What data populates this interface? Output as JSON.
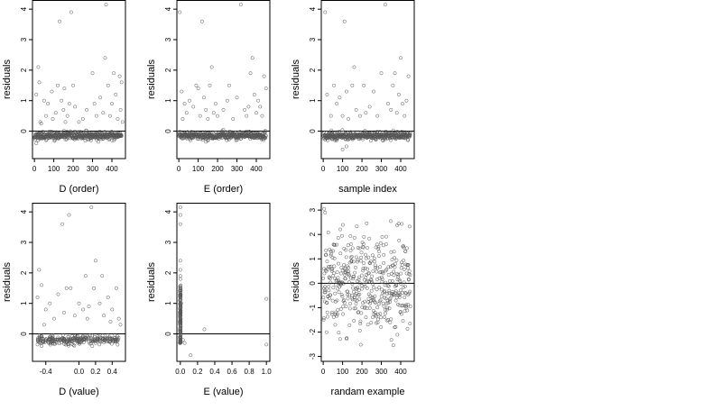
{
  "chart_data": [
    {
      "type": "scatter",
      "xlabel": "D (order)",
      "ylabel": "residuals",
      "xlim": [
        -10,
        470
      ],
      "ylim": [
        -0.9,
        4.3
      ],
      "xticks": [
        0,
        100,
        200,
        300,
        400
      ],
      "yticks": [
        0,
        1,
        2,
        3,
        4
      ],
      "reference_line_y": 0,
      "marker": "open-circle",
      "generated_cloud": {
        "mode": "baseline",
        "n": 450,
        "x_max": 450,
        "seed": 11,
        "base": -0.15,
        "spread": 0.06
      },
      "points": [
        [
          10,
          1.2
        ],
        [
          20,
          2.1
        ],
        [
          25,
          1.6
        ],
        [
          30,
          0.3
        ],
        [
          35,
          0.25
        ],
        [
          50,
          1.0
        ],
        [
          60,
          0.5
        ],
        [
          70,
          0.9
        ],
        [
          90,
          1.3
        ],
        [
          95,
          0.4
        ],
        [
          110,
          0.6
        ],
        [
          120,
          1.5
        ],
        [
          130,
          3.6
        ],
        [
          140,
          1.0
        ],
        [
          150,
          0.7
        ],
        [
          155,
          1.4
        ],
        [
          160,
          0.3
        ],
        [
          170,
          0.5
        ],
        [
          180,
          0.9
        ],
        [
          190,
          3.9
        ],
        [
          200,
          1.5
        ],
        [
          210,
          0.8
        ],
        [
          230,
          0.3
        ],
        [
          250,
          0.4
        ],
        [
          270,
          0.7
        ],
        [
          300,
          1.9
        ],
        [
          310,
          0.9
        ],
        [
          320,
          0.5
        ],
        [
          340,
          1.1
        ],
        [
          355,
          0.6
        ],
        [
          365,
          2.4
        ],
        [
          370,
          4.15
        ],
        [
          380,
          1.5
        ],
        [
          390,
          0.5
        ],
        [
          400,
          0.9
        ],
        [
          410,
          1.9
        ],
        [
          420,
          1.2
        ],
        [
          430,
          0.4
        ],
        [
          440,
          1.8
        ],
        [
          445,
          0.7
        ],
        [
          450,
          1.6
        ],
        [
          455,
          0.3
        ],
        [
          20,
          -0.3
        ],
        [
          10,
          -0.4
        ],
        [
          60,
          -0.3
        ],
        [
          330,
          -0.35
        ],
        [
          400,
          -0.3
        ]
      ]
    },
    {
      "type": "scatter",
      "xlabel": "E (order)",
      "ylabel": "residuals",
      "xlim": [
        -10,
        470
      ],
      "ylim": [
        -0.9,
        4.3
      ],
      "xticks": [
        0,
        100,
        200,
        300,
        400
      ],
      "yticks": [
        0,
        1,
        2,
        3,
        4
      ],
      "reference_line_y": 0,
      "marker": "open-circle",
      "generated_cloud": {
        "mode": "baseline",
        "n": 450,
        "x_max": 450,
        "seed": 23,
        "base": -0.15,
        "spread": 0.06
      },
      "points": [
        [
          5,
          3.9
        ],
        [
          15,
          1.3
        ],
        [
          20,
          0.4
        ],
        [
          30,
          0.9
        ],
        [
          40,
          0.6
        ],
        [
          55,
          1.0
        ],
        [
          75,
          0.8
        ],
        [
          90,
          1.5
        ],
        [
          100,
          1.4
        ],
        [
          110,
          0.5
        ],
        [
          120,
          3.6
        ],
        [
          130,
          1.1
        ],
        [
          140,
          0.7
        ],
        [
          150,
          0.4
        ],
        [
          160,
          1.5
        ],
        [
          170,
          2.1
        ],
        [
          180,
          0.6
        ],
        [
          190,
          0.9
        ],
        [
          200,
          0.5
        ],
        [
          230,
          0.7
        ],
        [
          250,
          1.0
        ],
        [
          260,
          1.5
        ],
        [
          280,
          0.4
        ],
        [
          300,
          1.1
        ],
        [
          320,
          4.15
        ],
        [
          340,
          0.7
        ],
        [
          350,
          0.5
        ],
        [
          360,
          0.8
        ],
        [
          370,
          1.9
        ],
        [
          380,
          2.4
        ],
        [
          390,
          1.2
        ],
        [
          400,
          0.6
        ],
        [
          410,
          1.0
        ],
        [
          420,
          0.8
        ],
        [
          430,
          0.5
        ],
        [
          440,
          1.8
        ],
        [
          450,
          1.4
        ],
        [
          140,
          -0.35
        ],
        [
          60,
          -0.3
        ]
      ]
    },
    {
      "type": "scatter",
      "xlabel": "sample index",
      "ylabel": "residuals",
      "xlim": [
        -10,
        470
      ],
      "ylim": [
        -0.9,
        4.3
      ],
      "xticks": [
        0,
        100,
        200,
        300,
        400
      ],
      "yticks": [
        0,
        1,
        2,
        3,
        4
      ],
      "reference_line_y": 0,
      "marker": "open-circle",
      "generated_cloud": {
        "mode": "baseline",
        "n": 450,
        "x_max": 450,
        "seed": 37,
        "base": -0.15,
        "spread": 0.06
      },
      "points": [
        [
          10,
          3.9
        ],
        [
          20,
          1.2
        ],
        [
          40,
          0.5
        ],
        [
          55,
          1.5
        ],
        [
          70,
          0.9
        ],
        [
          85,
          1.1
        ],
        [
          100,
          0.5
        ],
        [
          110,
          3.6
        ],
        [
          120,
          1.3
        ],
        [
          130,
          0.4
        ],
        [
          150,
          1.5
        ],
        [
          160,
          2.1
        ],
        [
          170,
          0.7
        ],
        [
          190,
          0.5
        ],
        [
          210,
          1.5
        ],
        [
          220,
          0.6
        ],
        [
          240,
          0.8
        ],
        [
          260,
          1.3
        ],
        [
          280,
          0.5
        ],
        [
          300,
          1.9
        ],
        [
          320,
          4.15
        ],
        [
          335,
          0.9
        ],
        [
          350,
          0.7
        ],
        [
          360,
          1.5
        ],
        [
          370,
          1.9
        ],
        [
          380,
          0.6
        ],
        [
          390,
          1.2
        ],
        [
          400,
          2.4
        ],
        [
          410,
          0.9
        ],
        [
          420,
          0.5
        ],
        [
          430,
          1.0
        ],
        [
          440,
          1.8
        ],
        [
          100,
          -0.6
        ],
        [
          120,
          -0.5
        ],
        [
          60,
          -0.3
        ]
      ]
    },
    {
      "type": "scatter",
      "xlabel": "D (value)",
      "ylabel": "residuals",
      "xlim": [
        -0.56,
        0.56
      ],
      "ylim": [
        -0.9,
        4.3
      ],
      "xticks": [
        -0.4,
        0.0,
        0.2,
        0.4
      ],
      "xtick_labels": [
        "-0.4",
        "0.0",
        "0.2",
        "0.4"
      ],
      "yticks": [
        0,
        1,
        2,
        3,
        4
      ],
      "reference_line_y": 0,
      "marker": "open-circle",
      "generated_cloud": {
        "mode": "band",
        "n": 260,
        "x_min": -0.5,
        "x_max": 0.5,
        "seed": 53,
        "base": -0.2,
        "spread": 0.07
      },
      "points": [
        [
          -0.5,
          1.2
        ],
        [
          -0.48,
          2.1
        ],
        [
          -0.45,
          1.6
        ],
        [
          -0.42,
          0.3
        ],
        [
          -0.4,
          0.8
        ],
        [
          -0.35,
          1.0
        ],
        [
          -0.3,
          0.5
        ],
        [
          -0.25,
          1.3
        ],
        [
          -0.2,
          3.6
        ],
        [
          -0.18,
          0.7
        ],
        [
          -0.15,
          1.5
        ],
        [
          -0.12,
          3.9
        ],
        [
          -0.1,
          1.5
        ],
        [
          -0.05,
          0.6
        ],
        [
          0.0,
          1.0
        ],
        [
          0.05,
          0.8
        ],
        [
          0.08,
          1.9
        ],
        [
          0.1,
          0.5
        ],
        [
          0.12,
          0.9
        ],
        [
          0.15,
          4.15
        ],
        [
          0.18,
          1.5
        ],
        [
          0.2,
          2.4
        ],
        [
          0.25,
          1.0
        ],
        [
          0.28,
          1.9
        ],
        [
          0.3,
          0.6
        ],
        [
          0.35,
          1.2
        ],
        [
          0.38,
          0.4
        ],
        [
          0.4,
          0.8
        ],
        [
          0.45,
          1.5
        ],
        [
          0.48,
          0.5
        ],
        [
          0.5,
          0.3
        ],
        [
          -0.5,
          -0.35
        ],
        [
          -0.45,
          -0.4
        ],
        [
          0.2,
          -0.3
        ]
      ]
    },
    {
      "type": "scatter",
      "xlabel": "E (value)",
      "ylabel": "residuals",
      "xlim": [
        -0.04,
        1.04
      ],
      "ylim": [
        -0.9,
        4.3
      ],
      "xticks": [
        0.0,
        0.2,
        0.4,
        0.6,
        0.8,
        1.0
      ],
      "xtick_labels": [
        "0.0",
        "0.2",
        "0.4",
        "0.6",
        "0.8",
        "1.0"
      ],
      "yticks": [
        0,
        1,
        2,
        3,
        4
      ],
      "reference_line_y": 0,
      "marker": "open-circle",
      "generated_cloud": {
        "mode": "column",
        "n": 160,
        "seed": 71,
        "x_center": 0.0,
        "x_jitter": 0.006,
        "y_min": -0.3,
        "y_max": 1.6
      },
      "points": [
        [
          0.0,
          4.15
        ],
        [
          0.0,
          3.9
        ],
        [
          0.0,
          3.6
        ],
        [
          0.0,
          2.4
        ],
        [
          0.0,
          2.1
        ],
        [
          0.0,
          1.9
        ],
        [
          0.0,
          1.8
        ],
        [
          0.0,
          1.5
        ],
        [
          0.005,
          1.2
        ],
        [
          0.01,
          1.0
        ],
        [
          0.03,
          -0.2
        ],
        [
          0.05,
          -0.3
        ],
        [
          0.12,
          -0.7
        ],
        [
          0.28,
          0.15
        ],
        [
          1.0,
          1.15
        ],
        [
          1.0,
          -0.35
        ]
      ]
    },
    {
      "type": "scatter",
      "xlabel": "randam example",
      "ylabel": "residuals",
      "xlim": [
        -10,
        470
      ],
      "ylim": [
        -3.2,
        3.3
      ],
      "xticks": [
        0,
        100,
        200,
        300,
        400
      ],
      "yticks": [
        -3,
        -2,
        -1,
        0,
        1,
        2,
        3
      ],
      "reference_line_y": 0,
      "marker": "open-circle",
      "generated_cloud": {
        "mode": "normal",
        "n": 450,
        "x_max": 450,
        "seed": 97,
        "sd": 1.0
      },
      "points": [
        [
          5,
          3.05
        ],
        [
          10,
          2.9
        ]
      ]
    }
  ]
}
